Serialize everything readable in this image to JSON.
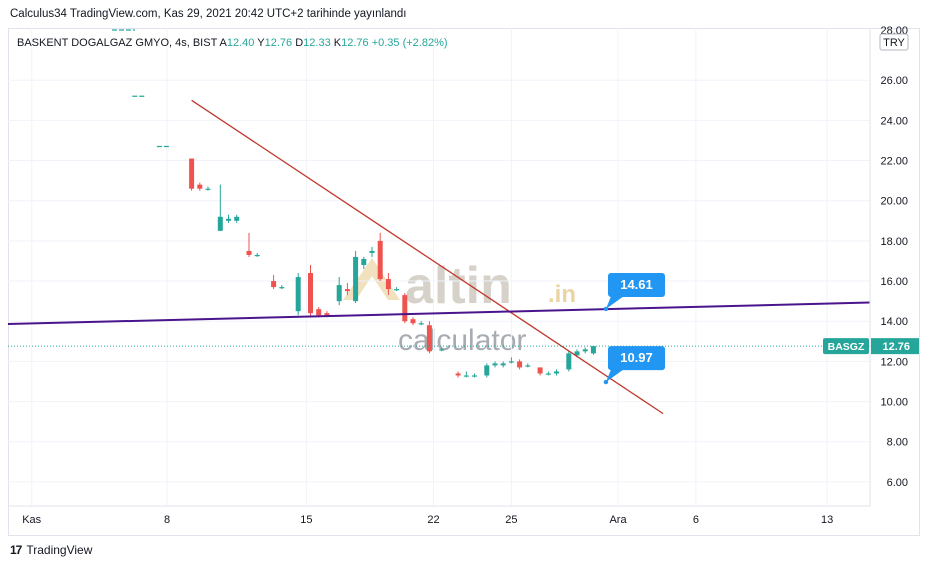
{
  "header_text": "Calculus34 TradingView.com, Kas 29, 2021 20:42 UTC+2 tarihinde yayınlandı",
  "footer_brand": "TradingView",
  "watermark": {
    "main": "altin",
    "suffix": ".in",
    "sub": "calculator"
  },
  "colors": {
    "up": "#26a69a",
    "down": "#ef5350",
    "trend_down": "#c0392b",
    "trend_flat": "#4a148c",
    "callout": "#2196f3",
    "last_price": "#26a69a"
  },
  "chart_data": {
    "type": "candlestick",
    "symbol_line": {
      "name": "BASKENT DOGALGAZ GMYO, 4s, BIST",
      "open_label": "A",
      "open": "12.40",
      "high_label": "Y",
      "high": "12.76",
      "low_label": "D",
      "low": "12.33",
      "close_label": "K",
      "close": "12.76",
      "change": "+0.35 (+2.82%)"
    },
    "currency": "TRY",
    "y_ticks": [
      "26.00",
      "24.00",
      "22.00",
      "20.00",
      "18.00",
      "16.00",
      "14.00",
      "12.00",
      "10.00",
      "8.00",
      "6.00"
    ],
    "y_partial_top": "28.00",
    "ylim": [
      4.8,
      28.6
    ],
    "x_ticks": [
      {
        "label": "Kas",
        "t": -33
      },
      {
        "label": "8",
        "t": 0
      },
      {
        "label": "15",
        "t": 34
      },
      {
        "label": "22",
        "t": 65
      },
      {
        "label": "25",
        "t": 84
      },
      {
        "label": "Ara",
        "t": 110
      },
      {
        "label": "6",
        "t": 129
      },
      {
        "label": "13",
        "t": 161
      }
    ],
    "pre_ipo_levels": [
      {
        "t": -7,
        "value": 25.2
      },
      {
        "t": -1,
        "value": 22.7
      }
    ],
    "candles": [
      {
        "t": 6,
        "open": 22.1,
        "high": 22.1,
        "low": 20.5,
        "close": 20.6
      },
      {
        "t": 8,
        "open": 20.8,
        "high": 20.9,
        "low": 20.5,
        "close": 20.6
      },
      {
        "t": 10,
        "open": 20.6,
        "high": 20.7,
        "low": 20.5,
        "close": 20.6
      },
      {
        "t": 13,
        "open": 18.5,
        "high": 20.8,
        "low": 18.5,
        "close": 19.2
      },
      {
        "t": 15,
        "open": 19.0,
        "high": 19.3,
        "low": 18.9,
        "close": 19.1
      },
      {
        "t": 17,
        "open": 19.0,
        "high": 19.3,
        "low": 18.9,
        "close": 19.2
      },
      {
        "t": 20,
        "open": 17.5,
        "high": 18.4,
        "low": 17.2,
        "close": 17.3
      },
      {
        "t": 22,
        "open": 17.3,
        "high": 17.4,
        "low": 17.2,
        "close": 17.3
      },
      {
        "t": 26,
        "open": 16.0,
        "high": 16.3,
        "low": 15.6,
        "close": 15.7
      },
      {
        "t": 28,
        "open": 15.7,
        "high": 15.8,
        "low": 15.6,
        "close": 15.7
      },
      {
        "t": 32,
        "open": 14.5,
        "high": 16.4,
        "low": 14.3,
        "close": 16.2
      },
      {
        "t": 35,
        "open": 16.4,
        "high": 16.8,
        "low": 14.2,
        "close": 14.4
      },
      {
        "t": 37,
        "open": 14.6,
        "high": 14.7,
        "low": 14.2,
        "close": 14.3
      },
      {
        "t": 39,
        "open": 14.4,
        "high": 14.5,
        "low": 14.2,
        "close": 14.3
      },
      {
        "t": 42,
        "open": 15.0,
        "high": 16.2,
        "low": 14.8,
        "close": 15.8
      },
      {
        "t": 44,
        "open": 15.6,
        "high": 15.9,
        "low": 15.3,
        "close": 15.5
      },
      {
        "t": 46,
        "open": 15.0,
        "high": 17.5,
        "low": 14.9,
        "close": 17.2
      },
      {
        "t": 48,
        "open": 16.8,
        "high": 17.2,
        "low": 16.6,
        "close": 17.1
      },
      {
        "t": 50,
        "open": 17.4,
        "high": 17.7,
        "low": 17.2,
        "close": 17.5
      },
      {
        "t": 52,
        "open": 18.0,
        "high": 18.4,
        "low": 16.0,
        "close": 16.1
      },
      {
        "t": 54,
        "open": 16.1,
        "high": 16.4,
        "low": 15.3,
        "close": 15.6
      },
      {
        "t": 56,
        "open": 15.6,
        "high": 15.7,
        "low": 15.5,
        "close": 15.6
      },
      {
        "t": 58,
        "open": 15.3,
        "high": 15.4,
        "low": 13.9,
        "close": 14.0
      },
      {
        "t": 60,
        "open": 14.1,
        "high": 14.2,
        "low": 13.8,
        "close": 13.9
      },
      {
        "t": 62,
        "open": 13.9,
        "high": 14.0,
        "low": 13.8,
        "close": 13.9
      },
      {
        "t": 64,
        "open": 13.8,
        "high": 14.0,
        "low": 12.4,
        "close": 12.5
      },
      {
        "t": 67,
        "open": 12.6,
        "high": 12.7,
        "low": 12.5,
        "close": 12.6
      },
      {
        "t": 71,
        "open": 11.4,
        "high": 11.5,
        "low": 11.2,
        "close": 11.3
      },
      {
        "t": 73,
        "open": 11.3,
        "high": 11.5,
        "low": 11.2,
        "close": 11.3
      },
      {
        "t": 75,
        "open": 11.3,
        "high": 11.4,
        "low": 11.2,
        "close": 11.3
      },
      {
        "t": 78,
        "open": 11.3,
        "high": 11.9,
        "low": 11.2,
        "close": 11.8
      },
      {
        "t": 80,
        "open": 11.8,
        "high": 12.0,
        "low": 11.7,
        "close": 11.9
      },
      {
        "t": 82,
        "open": 11.8,
        "high": 12.0,
        "low": 11.7,
        "close": 11.9
      },
      {
        "t": 84,
        "open": 12.0,
        "high": 12.2,
        "low": 11.9,
        "close": 12.0
      },
      {
        "t": 86,
        "open": 12.0,
        "high": 12.1,
        "low": 11.6,
        "close": 11.7
      },
      {
        "t": 88,
        "open": 11.8,
        "high": 11.9,
        "low": 11.7,
        "close": 11.8
      },
      {
        "t": 91,
        "open": 11.7,
        "high": 11.7,
        "low": 11.3,
        "close": 11.4
      },
      {
        "t": 93,
        "open": 11.4,
        "high": 11.5,
        "low": 11.3,
        "close": 11.4
      },
      {
        "t": 95,
        "open": 11.4,
        "high": 11.6,
        "low": 11.3,
        "close": 11.5
      },
      {
        "t": 98,
        "open": 11.6,
        "high": 12.5,
        "low": 11.5,
        "close": 12.4
      },
      {
        "t": 100,
        "open": 12.3,
        "high": 12.6,
        "low": 12.2,
        "close": 12.5
      },
      {
        "t": 102,
        "open": 12.5,
        "high": 12.7,
        "low": 12.4,
        "close": 12.6
      },
      {
        "t": 104,
        "open": 12.4,
        "high": 12.76,
        "low": 12.33,
        "close": 12.76
      }
    ],
    "trendlines": [
      {
        "name": "descending-trendline",
        "color": "#c0392b",
        "points": [
          {
            "t": 6,
            "value": 25.0
          },
          {
            "t": 121,
            "value": 9.4
          }
        ]
      },
      {
        "name": "horizontal-trendline",
        "color": "#4a148c",
        "points": [
          {
            "t": -90,
            "value": 13.6
          },
          {
            "t": 205,
            "value": 15.1
          }
        ]
      }
    ],
    "annotations": [
      {
        "text": "14.61",
        "t": 109,
        "value": 14.61
      },
      {
        "text": "10.97",
        "t": 109,
        "value": 10.97
      }
    ],
    "last_price": {
      "symbol": "BASGZ",
      "value": "12.76",
      "level": 12.76
    }
  }
}
